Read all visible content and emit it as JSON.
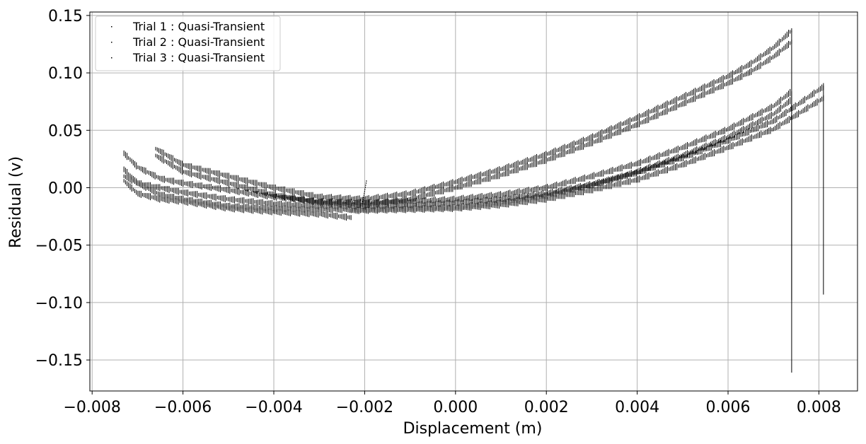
{
  "chart_data": {
    "type": "scatter",
    "title": "",
    "xlabel": "Displacement (m)",
    "ylabel": "Residual (v)",
    "xlim": [
      -0.00805,
      0.00885
    ],
    "ylim": [
      -0.177,
      0.153
    ],
    "xticks": [
      -0.008,
      -0.006,
      -0.004,
      -0.002,
      0.0,
      0.002,
      0.004,
      0.006,
      0.008
    ],
    "xtick_labels": [
      "−0.008",
      "−0.006",
      "−0.004",
      "−0.002",
      "0.000",
      "0.002",
      "0.004",
      "0.006",
      "0.008"
    ],
    "yticks": [
      0.15,
      0.1,
      0.05,
      0.0,
      -0.05,
      -0.1,
      -0.15
    ],
    "ytick_labels": [
      "0.15",
      "0.10",
      "0.05",
      "0.00",
      "−0.05",
      "−0.10",
      "−0.15"
    ],
    "grid": true,
    "legend_position": "top-left",
    "marker_color": "#000000",
    "series": [
      {
        "name": "Trial 1 : Quasi-Transient",
        "branches": [
          {
            "x": [
              -0.0066,
              -0.006,
              -0.005,
              -0.004,
              -0.003,
              -0.002,
              -0.001,
              0.0,
              0.001,
              0.002,
              0.003,
              0.004,
              0.005,
              0.006,
              0.0065,
              0.007,
              0.0074
            ],
            "y": [
              0.034,
              0.02,
              0.01,
              0.0,
              -0.008,
              -0.01,
              -0.005,
              0.005,
              0.016,
              0.029,
              0.044,
              0.061,
              0.079,
              0.097,
              0.108,
              0.122,
              0.137
            ]
          },
          {
            "x": [
              -0.0066,
              -0.006,
              -0.005,
              -0.004,
              -0.003,
              -0.002,
              -0.001,
              0.0,
              0.001,
              0.002,
              0.003,
              0.004,
              0.005,
              0.006,
              0.0065,
              0.007,
              0.0074
            ],
            "y": [
              0.028,
              0.014,
              0.004,
              -0.006,
              -0.013,
              -0.015,
              -0.01,
              0.0,
              0.011,
              0.024,
              0.039,
              0.055,
              0.073,
              0.091,
              0.101,
              0.114,
              0.127
            ]
          }
        ],
        "spike": {
          "x": 0.0074,
          "y_min": -0.161,
          "y_max": 0.137
        }
      },
      {
        "name": "Trial 2 : Quasi-Transient",
        "branches": [
          {
            "x": [
              -0.0073,
              -0.007,
              -0.0065,
              -0.006,
              -0.005,
              -0.004,
              -0.003,
              -0.002,
              -0.001,
              0.0,
              0.001,
              0.002,
              0.003,
              0.004,
              0.005,
              0.006,
              0.007,
              0.0074
            ],
            "y": [
              0.03,
              0.018,
              0.008,
              0.004,
              -0.002,
              -0.008,
              -0.012,
              -0.013,
              -0.012,
              -0.01,
              -0.006,
              0.0,
              0.01,
              0.021,
              0.035,
              0.051,
              0.071,
              0.084
            ]
          },
          {
            "x": [
              -0.0073,
              -0.007,
              -0.0065,
              -0.006,
              -0.005,
              -0.004,
              -0.003,
              -0.002,
              -0.001,
              0.0,
              0.001,
              0.002,
              0.003,
              0.004,
              0.005,
              0.006,
              0.007,
              0.0074
            ],
            "y": [
              0.016,
              0.004,
              -0.006,
              -0.01,
              -0.016,
              -0.018,
              -0.019,
              -0.019,
              -0.018,
              -0.017,
              -0.013,
              -0.007,
              0.002,
              0.014,
              0.028,
              0.044,
              0.064,
              0.077
            ]
          }
        ],
        "spike": {
          "x": 0.0074,
          "y_min": -0.098,
          "y_max": 0.084
        }
      },
      {
        "name": "Trial 3 : Quasi-Transient",
        "branches": [
          {
            "x": [
              -0.0073,
              -0.007,
              -0.0065,
              -0.006,
              -0.005,
              -0.004,
              -0.003,
              -0.002,
              -0.001,
              0.0,
              0.001,
              0.002,
              0.003,
              0.004,
              0.005,
              0.006,
              0.007,
              0.0081
            ],
            "y": [
              0.01,
              0.004,
              0.0,
              -0.004,
              -0.01,
              -0.014,
              -0.016,
              -0.016,
              -0.015,
              -0.013,
              -0.01,
              -0.005,
              0.003,
              0.013,
              0.026,
              0.041,
              0.058,
              0.088
            ]
          },
          {
            "x": [
              -0.0073,
              -0.007,
              -0.0065,
              -0.006,
              -0.005,
              -0.004,
              -0.003,
              -0.0023
            ],
            "y": [
              0.006,
              -0.005,
              -0.01,
              -0.012,
              -0.018,
              -0.021,
              -0.023,
              -0.026
            ]
          },
          {
            "x": [
              -0.0023,
              -0.001,
              0.0,
              0.001,
              0.002,
              0.003,
              0.004,
              0.005,
              0.006,
              0.007,
              0.0081
            ],
            "y": [
              -0.02,
              -0.019,
              -0.018,
              -0.015,
              -0.01,
              -0.002,
              0.007,
              0.02,
              0.035,
              0.051,
              0.078
            ]
          }
        ],
        "spike": {
          "x": 0.0081,
          "y_min": -0.093,
          "y_max": 0.089
        }
      }
    ]
  }
}
